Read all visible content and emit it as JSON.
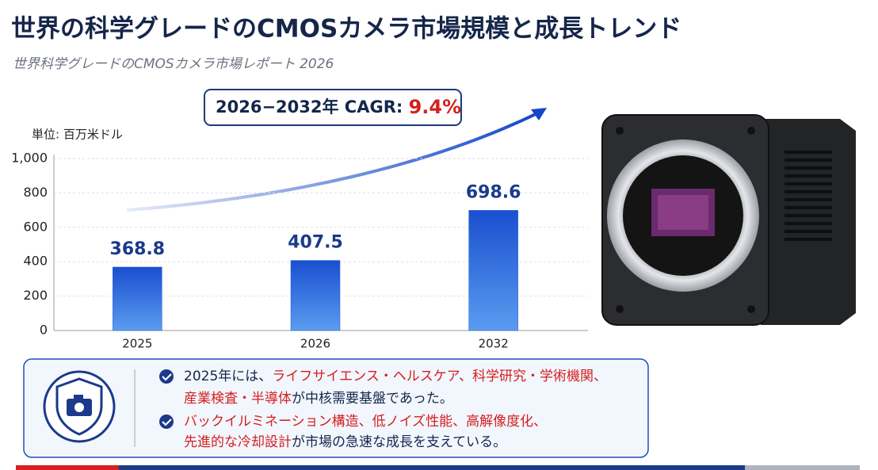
{
  "title": "世界の科学グレードのCMOSカメラ市場規模と成長トレンド",
  "subtitle": "世界科学グレードのCMOSカメラ市場レポート 2026",
  "cagr": {
    "label": "2026−2032年 CAGR:",
    "value": "9.4%"
  },
  "chart_data": {
    "type": "bar",
    "y_label": "単位: 百万米ドル",
    "categories": [
      "2025",
      "2026",
      "2032"
    ],
    "values": [
      368.8,
      407.5,
      698.6
    ],
    "color": "#1f5fd6",
    "ylim": [
      0,
      1000
    ],
    "yticks": [
      0,
      200,
      400,
      600,
      800,
      {
        "value": 1000,
        "label": "1,000"
      }
    ],
    "grid": true
  },
  "bullets": [
    [
      [
        {
          "text": "2025年には、"
        },
        {
          "text": "ライフサイエンス・ヘルスケア、科学研究・学術機関、",
          "emphasis": true
        }
      ],
      [
        {
          "text": "産業検査・半導体",
          "emphasis": true
        },
        {
          "text": "が中核需要基盤であった。"
        }
      ]
    ],
    [
      [
        {
          "text": "バックイルミネーション構造、低ノイズ性能、高解像度化、",
          "emphasis": true
        }
      ],
      [
        {
          "text": "先進的な冷却設計",
          "emphasis": true
        },
        {
          "text": "が市場の急速な成長を支えている。"
        }
      ]
    ]
  ]
}
